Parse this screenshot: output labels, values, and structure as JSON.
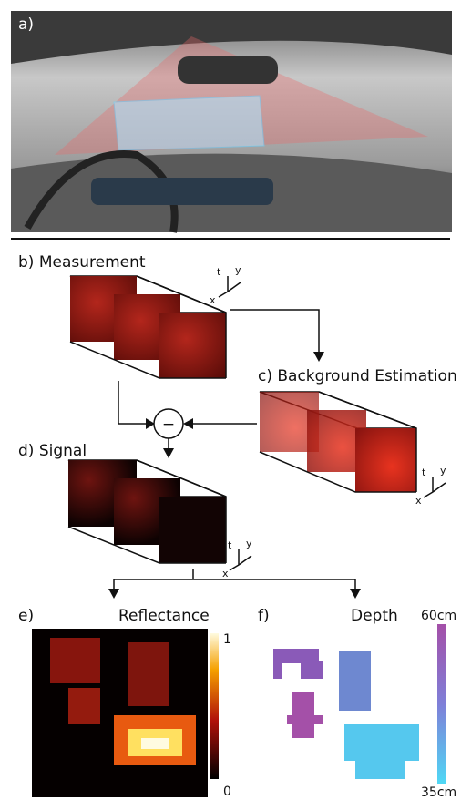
{
  "panel_a": {
    "label": "a)"
  },
  "panel_b": {
    "label": "b) Measurement"
  },
  "panel_c": {
    "label": "c) Background Estimation"
  },
  "operator": {
    "label": "−"
  },
  "panel_d": {
    "label": "d) Signal"
  },
  "panel_e": {
    "label": "e)",
    "title": "Reflectance",
    "colorbar": {
      "top": "1",
      "bottom": "0"
    }
  },
  "panel_f": {
    "label": "f)",
    "title": "Depth",
    "colorbar": {
      "top": "60cm",
      "bottom": "35cm"
    }
  },
  "axis_glyphs": [
    {
      "t": "t",
      "y": "y",
      "x": "x"
    },
    {
      "t": "t",
      "y": "y",
      "x": "x"
    },
    {
      "t": "t",
      "y": "y",
      "x": "x"
    }
  ]
}
